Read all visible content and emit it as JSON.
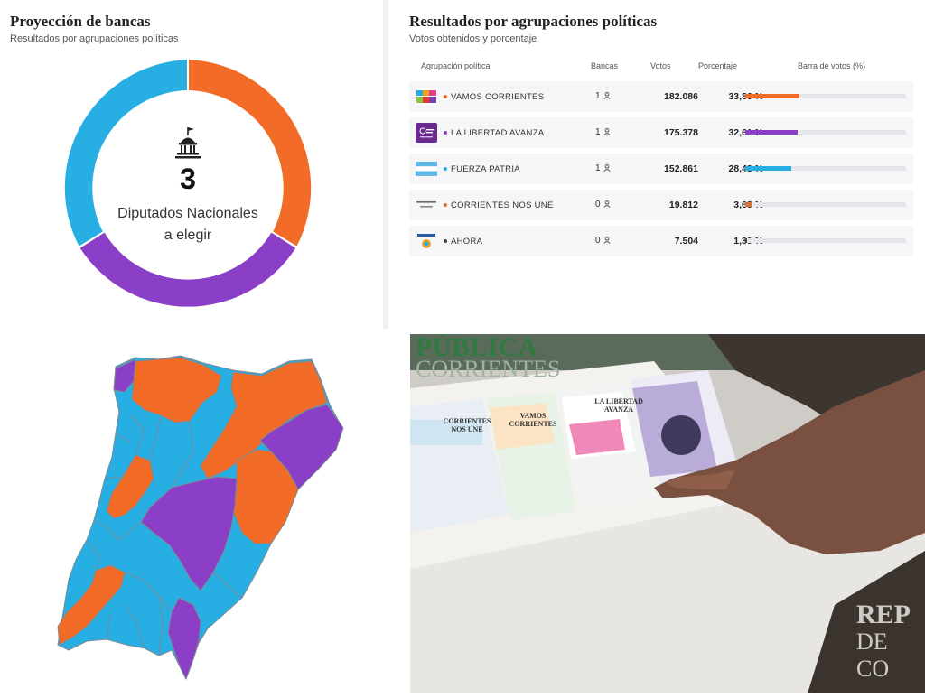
{
  "seats_panel": {
    "title": "Proyección de bancas",
    "subtitle": "Resultados por agrupaciones políticas",
    "center_number": "3",
    "center_label_line1": "Diputados Nacionales",
    "center_label_line2": "a elegir",
    "colors": {
      "orange": "#f26b27",
      "purple": "#8a3fc6",
      "blue": "#27aee3"
    }
  },
  "results_panel": {
    "title": "Resultados por agrupaciones políticas",
    "subtitle": "Votos obtenidos y porcentaje",
    "headers": {
      "party": "Agrupación política",
      "seats": "Bancas",
      "votes": "Votos",
      "percent": "Porcentaje",
      "bar": "Barra de votos (%)"
    },
    "rows": [
      {
        "name": "VAMOS CORRIENTES",
        "seats": "1",
        "votes": "182.086",
        "percent": "33,86 %",
        "share": 33.86,
        "color": "#f26b27"
      },
      {
        "name": "LA LIBERTAD AVANZA",
        "seats": "1",
        "votes": "175.378",
        "percent": "32,61 %",
        "share": 32.61,
        "color": "#8a3fc6"
      },
      {
        "name": "FUERZA PATRIA",
        "seats": "1",
        "votes": "152.861",
        "percent": "28,43 %",
        "share": 28.43,
        "color": "#27aee3"
      },
      {
        "name": "CORRIENTES NOS UNE",
        "seats": "0",
        "votes": "19.812",
        "percent": "3,68 %",
        "share": 3.68,
        "color": "#d9733b"
      },
      {
        "name": "AHORA",
        "seats": "0",
        "votes": "7.504",
        "percent": "1,39 %",
        "share": 1.39,
        "color": "#444444"
      }
    ]
  },
  "map_panel": {
    "colors": {
      "orange": "#f26b27",
      "purple": "#8a3fc6",
      "blue": "#27aee3"
    }
  },
  "photo_panel": {
    "top_text_1": "PÚBLICA",
    "top_text_2": "CORRIENTES",
    "watermark_1": "REP",
    "watermark_2": "DE CO",
    "ballot_1_title": "CORRIENTES NOS UNE",
    "ballot_2_title": "VAMOS CORRIENTES",
    "ballot_3_title": "LA LIBERTAD AVANZA"
  }
}
